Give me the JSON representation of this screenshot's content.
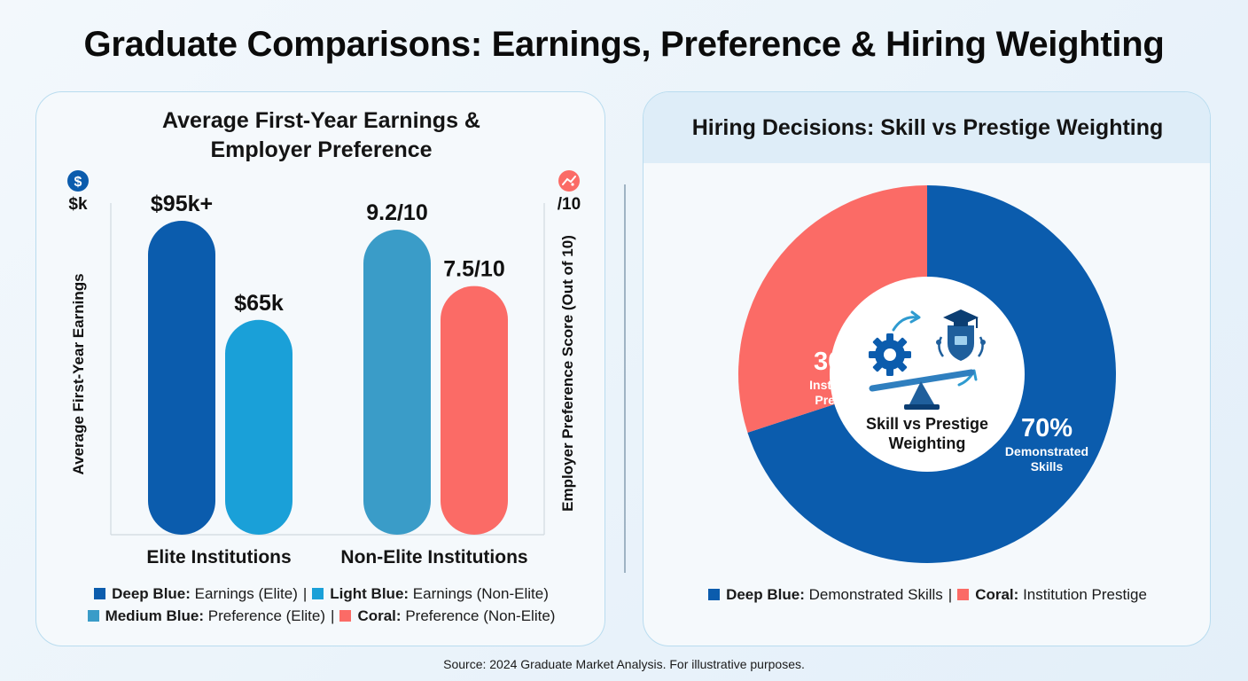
{
  "title": "Graduate Comparisons: Earnings, Preference & Hiring Weighting",
  "colors": {
    "deep_blue": "#0b5cad",
    "light_blue": "#1aa0d8",
    "medium_blue": "#3a9cc8",
    "coral": "#fb6b66"
  },
  "left_panel": {
    "title_line1": "Average First-Year Earnings &",
    "title_line2": "Employer Preference",
    "left_axis_unit": "$k",
    "left_axis_label": "Average First-Year Earnings",
    "left_axis_icon": "dollar-icon",
    "right_axis_unit": "/10",
    "right_axis_label": "Employer Preference Score (Out of 10)",
    "right_axis_icon": "handshake-icon",
    "legend": [
      {
        "color_name": "Deep Blue:",
        "text": "Earnings (Elite)",
        "sep": "|",
        "color_name2": "Light Blue:",
        "text2": "Earnings (Non-Elite)"
      },
      {
        "color_name": "Medium Blue:",
        "text": "Preference (Elite)",
        "sep": "|",
        "color_name2": "Coral:",
        "text2": "Preference (Non-Elite)"
      }
    ]
  },
  "right_panel": {
    "title": "Hiring Decisions: Skill vs Prestige Weighting",
    "center_line1": "Skill vs Prestige",
    "center_line2": "Weighting",
    "center_icons": [
      "gear-icon",
      "arrow-icon",
      "graduation-cap-icon",
      "shield-icon",
      "balance-scale-icon"
    ],
    "legend": {
      "color_name": "Deep Blue:",
      "text": "Demonstrated Skills",
      "sep": "|",
      "color_name2": "Coral:",
      "text2": "Institution Prestige"
    }
  },
  "source": "Source: 2024 Graduate Market Analysis. For illustrative purposes.",
  "chart_data": [
    {
      "type": "bar",
      "title": "Average First-Year Earnings & Employer Preference",
      "categories": [
        "Elite Institutions",
        "Non-Elite Institutions"
      ],
      "series": [
        {
          "name": "Earnings (Elite)",
          "axis": "left",
          "category": "Elite Institutions",
          "value": 95,
          "label": "$95k+",
          "color": "#0b5cad"
        },
        {
          "name": "Earnings (Non-Elite)",
          "axis": "left",
          "category": "Elite Institutions",
          "value": 65,
          "label": "$65k",
          "color": "#1aa0d8"
        },
        {
          "name": "Preference (Elite)",
          "axis": "right",
          "category": "Non-Elite Institutions",
          "value": 9.2,
          "label": "9.2/10",
          "color": "#3a9cc8"
        },
        {
          "name": "Preference (Non-Elite)",
          "axis": "right",
          "category": "Non-Elite Institutions",
          "value": 7.5,
          "label": "7.5/10",
          "color": "#fb6b66"
        }
      ],
      "ylabel_left": "Average First-Year Earnings",
      "ylabel_right": "Employer Preference Score (Out of 10)",
      "ylim_left": [
        0,
        100
      ],
      "ylim_right": [
        0,
        10
      ],
      "grid": false
    },
    {
      "type": "pie",
      "title": "Hiring Decisions: Skill vs Prestige Weighting",
      "slices": [
        {
          "name": "Demonstrated Skills",
          "value": 70,
          "label": "70%",
          "color": "#0b5cad"
        },
        {
          "name": "Institution Prestige",
          "value": 30,
          "label": "30%",
          "color": "#fb6b66"
        }
      ]
    }
  ]
}
